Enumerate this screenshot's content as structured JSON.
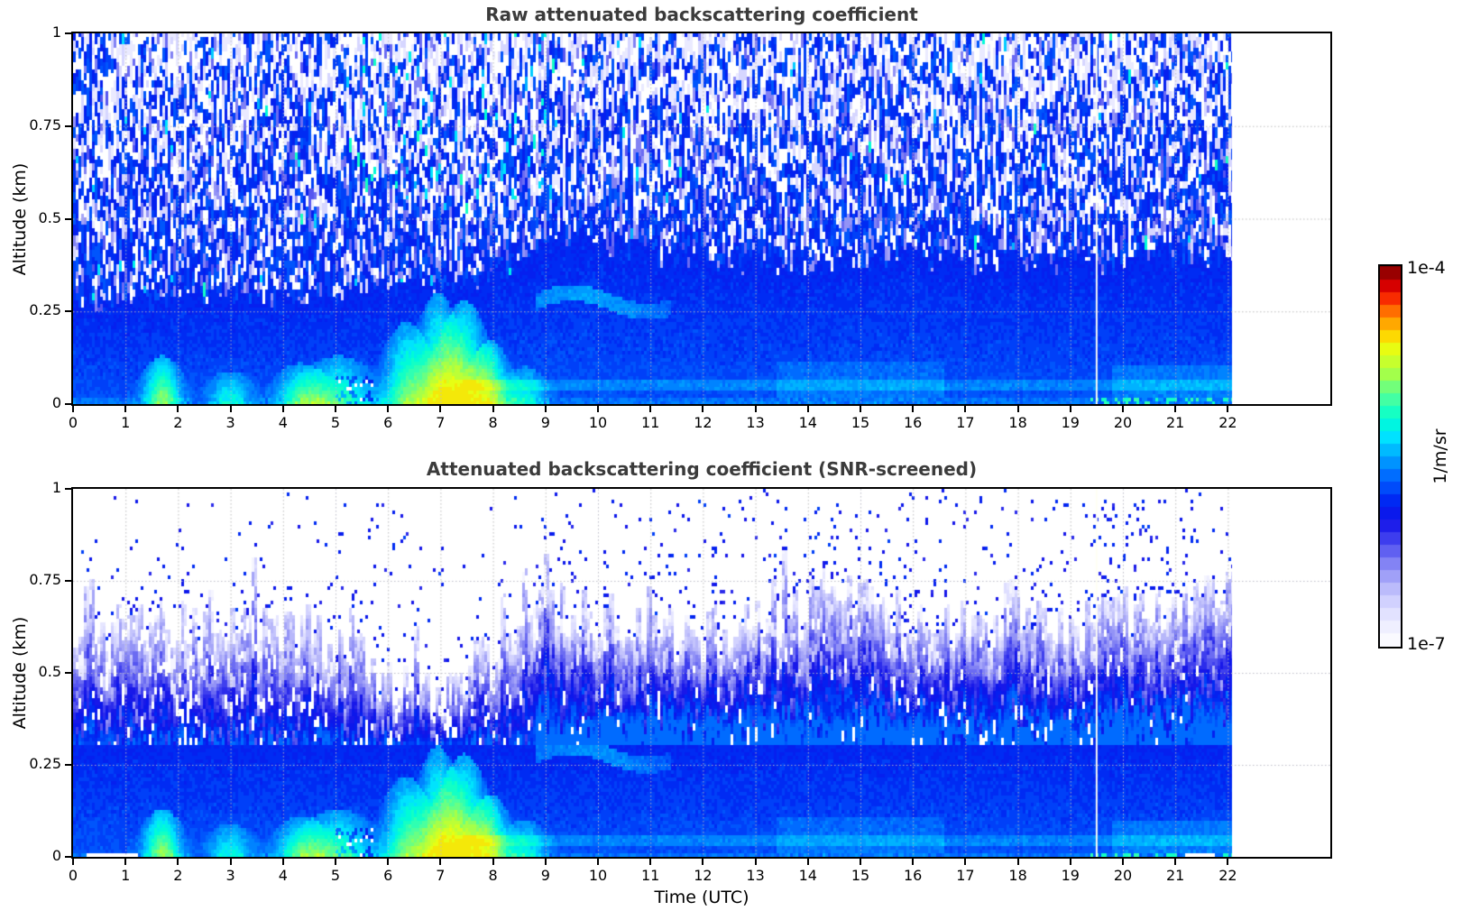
{
  "figure": {
    "background": "#ffffff"
  },
  "chart_data": [
    {
      "type": "heatmap",
      "title": "Raw attenuated backscattering coefficient",
      "xlabel": "",
      "ylabel": "Altitude (km)",
      "x_range": [
        0,
        24
      ],
      "y_range": [
        0,
        1
      ],
      "x_ticks": [
        0,
        1,
        2,
        3,
        4,
        5,
        6,
        7,
        8,
        9,
        10,
        11,
        12,
        13,
        14,
        15,
        16,
        17,
        18,
        19,
        20,
        21,
        22
      ],
      "y_ticks": [
        0,
        0.25,
        0.5,
        0.75,
        1
      ],
      "y_tick_labels": [
        "0",
        "0.25",
        "0.5",
        "0.75",
        "1"
      ],
      "t_max_data": 22.08,
      "value_scale": "log",
      "value_min_label": "1e-7",
      "value_max_label": "1e-4",
      "features": {
        "solid_top": [
          0.27,
          0.27,
          0.28,
          0.28,
          0.28,
          0.29,
          0.31,
          0.33,
          0.34,
          0.45,
          0.43,
          0.41,
          0.38,
          0.38,
          0.38,
          0.4,
          0.4,
          0.38,
          0.38,
          0.38,
          0.38,
          0.4,
          0.4
        ],
        "plumes": [
          {
            "t": 1.7,
            "w": 0.25,
            "h": 0.13,
            "i": 0.3
          },
          {
            "t": 3.0,
            "w": 0.3,
            "h": 0.09,
            "i": 0.18
          },
          {
            "t": 4.35,
            "w": 0.35,
            "h": 0.11,
            "i": 0.22
          },
          {
            "t": 5.05,
            "w": 0.45,
            "h": 0.13,
            "i": 0.22
          },
          {
            "t": 6.35,
            "w": 0.3,
            "h": 0.22,
            "i": 0.26
          },
          {
            "t": 6.95,
            "w": 0.28,
            "h": 0.3,
            "i": 0.3
          },
          {
            "t": 7.45,
            "w": 0.3,
            "h": 0.28,
            "i": 0.32
          },
          {
            "t": 7.95,
            "w": 0.25,
            "h": 0.17,
            "i": 0.28
          },
          {
            "t": 8.6,
            "w": 0.3,
            "h": 0.1,
            "i": 0.18
          }
        ],
        "layers": [
          {
            "t0": 7.4,
            "t1": 22.1,
            "h0": 0.032,
            "h1": 0.062,
            "boost": 0.05
          },
          {
            "t0": 13.4,
            "t1": 16.6,
            "h0": 0.0,
            "h1": 0.11,
            "boost": 0.035
          },
          {
            "t0": 19.8,
            "t1": 22.1,
            "h0": 0.0,
            "h1": 0.1,
            "boost": 0.045
          }
        ],
        "elevated_layer": {
          "t0": 8.8,
          "t1": 11.4,
          "h_center": 0.275,
          "h_amp": 0.025,
          "boost": 0.1
        },
        "cyan_noise_zone": {
          "t0": 5.2,
          "t1": 9.2,
          "h_min": 0.55
        },
        "vertical_line_t": 19.5
      }
    },
    {
      "type": "heatmap",
      "title": "Attenuated backscattering coefficient (SNR-screened)",
      "xlabel": "Time (UTC)",
      "ylabel": "Altitude (km)",
      "x_range": [
        0,
        24
      ],
      "y_range": [
        0,
        1
      ],
      "x_ticks": [
        0,
        1,
        2,
        3,
        4,
        5,
        6,
        7,
        8,
        9,
        10,
        11,
        12,
        13,
        14,
        15,
        16,
        17,
        18,
        19,
        20,
        21,
        22
      ],
      "y_ticks": [
        0,
        0.25,
        0.5,
        0.75,
        1
      ],
      "y_tick_labels": [
        "0",
        "0.25",
        "0.5",
        "0.75",
        "1"
      ],
      "t_max_data": 22.08,
      "value_scale": "log",
      "value_min_label": "1e-7",
      "value_max_label": "1e-4",
      "features": {
        "solid_top": [
          0.27,
          0.27,
          0.28,
          0.28,
          0.28,
          0.29,
          0.31,
          0.33,
          0.34,
          0.45,
          0.43,
          0.41,
          0.38,
          0.38,
          0.38,
          0.4,
          0.4,
          0.38,
          0.38,
          0.38,
          0.38,
          0.4,
          0.4
        ],
        "boundary_top": [
          0.62,
          0.64,
          0.63,
          0.6,
          0.62,
          0.59,
          0.46,
          0.45,
          0.55,
          0.68,
          0.66,
          0.62,
          0.6,
          0.63,
          0.66,
          0.71,
          0.66,
          0.63,
          0.64,
          0.62,
          0.65,
          0.68,
          0.7
        ],
        "mottle_floor": 0.3,
        "plumes": [
          {
            "t": 1.7,
            "w": 0.25,
            "h": 0.13,
            "i": 0.3
          },
          {
            "t": 3.0,
            "w": 0.3,
            "h": 0.09,
            "i": 0.18
          },
          {
            "t": 4.35,
            "w": 0.35,
            "h": 0.11,
            "i": 0.22
          },
          {
            "t": 5.05,
            "w": 0.45,
            "h": 0.13,
            "i": 0.22
          },
          {
            "t": 6.35,
            "w": 0.3,
            "h": 0.22,
            "i": 0.26
          },
          {
            "t": 6.95,
            "w": 0.28,
            "h": 0.3,
            "i": 0.3
          },
          {
            "t": 7.45,
            "w": 0.3,
            "h": 0.28,
            "i": 0.32
          },
          {
            "t": 7.95,
            "w": 0.25,
            "h": 0.17,
            "i": 0.28
          },
          {
            "t": 8.6,
            "w": 0.3,
            "h": 0.1,
            "i": 0.18
          }
        ],
        "layers": [
          {
            "t0": 7.4,
            "t1": 22.1,
            "h0": 0.032,
            "h1": 0.062,
            "boost": 0.05
          },
          {
            "t0": 13.4,
            "t1": 16.6,
            "h0": 0.0,
            "h1": 0.11,
            "boost": 0.035
          },
          {
            "t0": 19.8,
            "t1": 22.1,
            "h0": 0.0,
            "h1": 0.1,
            "boost": 0.045
          }
        ],
        "elevated_layer": {
          "t0": 8.8,
          "t1": 11.4,
          "h_center": 0.275,
          "h_amp": 0.025,
          "boost": 0.1
        },
        "bottom_gaps": [
          {
            "t0": 0.25,
            "t1": 1.25
          },
          {
            "t0": 21.2,
            "t1": 21.75
          }
        ],
        "vertical_line_t": 19.5
      }
    }
  ],
  "colorbar": {
    "tick_top": "1e-4",
    "tick_bottom": "1e-7",
    "units": "1/m/sr",
    "colormap_stops": [
      [
        0.0,
        "#ffffff"
      ],
      [
        0.05,
        "#efefff"
      ],
      [
        0.1,
        "#dcdcff"
      ],
      [
        0.16,
        "#b4b4fa"
      ],
      [
        0.22,
        "#8080f4"
      ],
      [
        0.28,
        "#4040ee"
      ],
      [
        0.33,
        "#1111e8"
      ],
      [
        0.38,
        "#0026f2"
      ],
      [
        0.44,
        "#0062ff"
      ],
      [
        0.5,
        "#00a6ff"
      ],
      [
        0.55,
        "#00e2ff"
      ],
      [
        0.6,
        "#00ffd2"
      ],
      [
        0.66,
        "#50ff9b"
      ],
      [
        0.72,
        "#a8ff46"
      ],
      [
        0.78,
        "#e6ff14"
      ],
      [
        0.82,
        "#ffd600"
      ],
      [
        0.87,
        "#ff8a00"
      ],
      [
        0.91,
        "#ff3400"
      ],
      [
        0.95,
        "#d60000"
      ],
      [
        1.0,
        "#7a0000"
      ]
    ]
  }
}
